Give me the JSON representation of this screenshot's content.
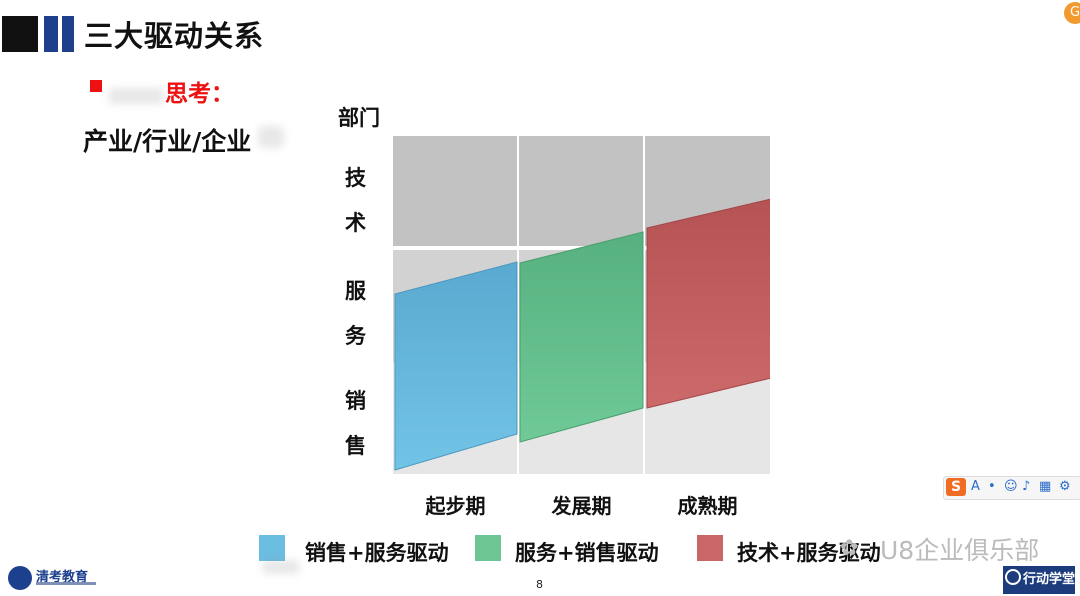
{
  "slide": {
    "title": "三大驱动关系",
    "think_label": "思考：",
    "industry_label": "产业/行业/企业",
    "page_number": "8"
  },
  "diagram": {
    "y_title": "部门",
    "y_groups": [
      {
        "id": "tech",
        "chars": [
          "技",
          "术"
        ]
      },
      {
        "id": "service",
        "chars": [
          "服",
          "务"
        ]
      },
      {
        "id": "sales",
        "chars": [
          "销",
          "售"
        ]
      }
    ],
    "stages": [
      "起步期",
      "发展期",
      "成熟期"
    ],
    "legend": [
      {
        "label": "销售+服务驱动",
        "color": "#5bb5dc"
      },
      {
        "label": "服务+销售驱动",
        "color": "#5cbf8a"
      },
      {
        "label": "技术+服务驱动",
        "color": "#c75b5d"
      }
    ],
    "colors": {
      "tech_band": "#c2c2c2",
      "service_band": "#d2d2d2",
      "sales_band": "#e6e6e6",
      "title_bar_dark": "#111111",
      "title_bar_blue": "#1e3f8c"
    }
  },
  "logos": {
    "left": "清考教育",
    "right": "行动学堂"
  },
  "watermark": "U8企业俱乐部",
  "ime_toolbar": {
    "s_label": "S",
    "a_label": "A"
  },
  "top_badge": "G"
}
